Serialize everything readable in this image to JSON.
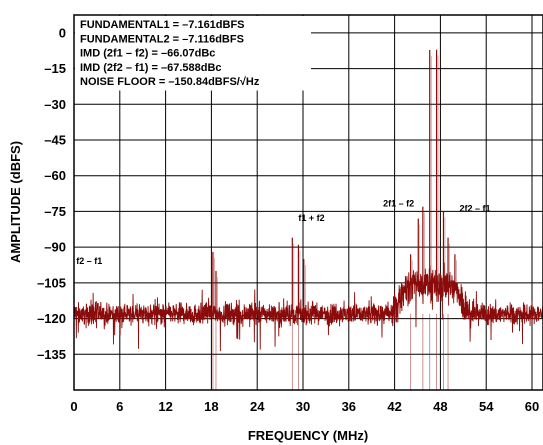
{
  "chart_data": {
    "type": "line",
    "xlabel": "FREQUENCY (MHz)",
    "ylabel": "AMPLITUDE (dBFS)",
    "xlim": [
      0,
      61.44
    ],
    "ylim": [
      -150,
      7.5
    ],
    "x_ticks": [
      0,
      6,
      12,
      18,
      24,
      30,
      36,
      42,
      48,
      54,
      60
    ],
    "y_ticks": [
      0,
      -15,
      -30,
      -45,
      -60,
      -75,
      -90,
      -105,
      -120,
      -135
    ],
    "grid": true,
    "series_color": "#8b0a0a",
    "noise_floor_level": -118,
    "legend_lines": [
      "FUNDAMENTAL1 = –7.161dBFS",
      "FUNDAMENTAL2 = –7.116dBFS",
      "IMD (2f1 – f2) = –66.07dBc",
      "IMD (2f2 – f1) = –67.588dBc",
      "NOISE FLOOR = –150.84dBFS/√Hz"
    ],
    "annotations": [
      {
        "text": "f2 – f1",
        "x": 0.3,
        "y": -97
      },
      {
        "text": "f1 + f2",
        "x": 29.4,
        "y": -79
      },
      {
        "text": "2f1 – f2",
        "x": 40.5,
        "y": -73
      },
      {
        "text": "2f2 – f1",
        "x": 50.5,
        "y": -75
      }
    ],
    "peaks": [
      {
        "x": 46.6,
        "y": -7.2
      },
      {
        "x": 47.5,
        "y": -7.1
      },
      {
        "x": 45.7,
        "y": -73
      },
      {
        "x": 48.4,
        "y": -75
      },
      {
        "x": 18.2,
        "y": -92
      },
      {
        "x": 18.6,
        "y": -100
      },
      {
        "x": 28.6,
        "y": -86
      },
      {
        "x": 29.4,
        "y": -89
      },
      {
        "x": 30.1,
        "y": -95
      },
      {
        "x": 44.1,
        "y": -93
      },
      {
        "x": 45.1,
        "y": -78
      },
      {
        "x": 49.0,
        "y": -86
      },
      {
        "x": 49.9,
        "y": -93
      }
    ]
  }
}
